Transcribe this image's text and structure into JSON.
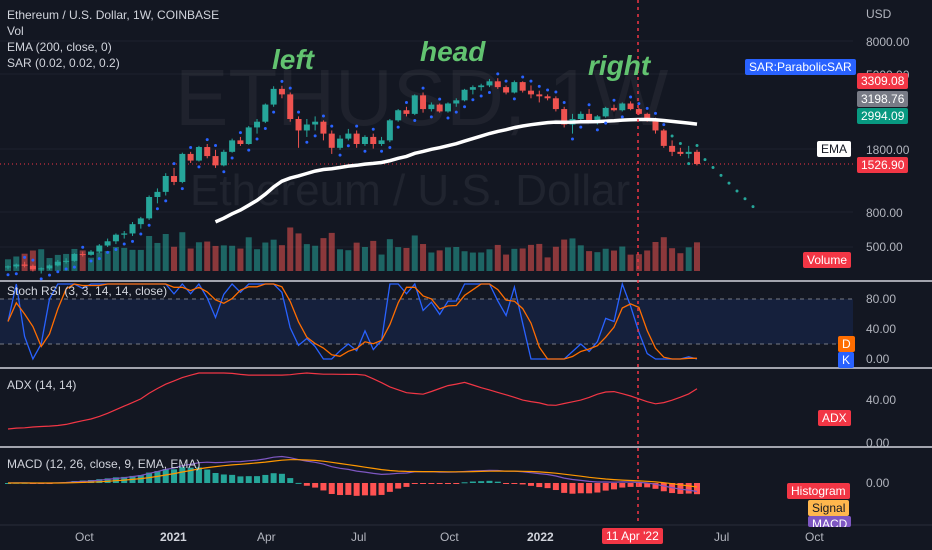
{
  "header": {
    "title": "Ethereum / U.S. Dollar, 1W, COINBASE",
    "indicators": [
      "Vol",
      "EMA (200, close, 0)",
      "SAR (0.02, 0.02, 0.2)"
    ]
  },
  "watermark": {
    "symbol": "ETHUSD, 1W",
    "name": "Ethereum / U.S. Dollar"
  },
  "annotations": {
    "left": "left",
    "head": "head",
    "right": "right"
  },
  "price_axis": {
    "unit": "USD",
    "ticks": [
      "8000.00",
      "5000.00",
      "1800.00",
      "800.00",
      "500.00"
    ],
    "badges": [
      {
        "text": "3309.08",
        "color": "#f23645"
      },
      {
        "text": "3198.76",
        "color": "#787b86"
      },
      {
        "text": "2994.09",
        "color": "#089981"
      },
      {
        "text": "1526.90",
        "color": "#f23645"
      }
    ],
    "sar_label": "SAR:ParabolicSAR",
    "ema_label": "EMA",
    "volume_label": "Volume"
  },
  "stoch": {
    "title": "Stoch RSI (3, 3, 14, 14, close)",
    "ticks": [
      "80.00",
      "40.00",
      "0.00"
    ],
    "d_label": "D",
    "k_label": "K"
  },
  "adx": {
    "title": "ADX (14, 14)",
    "ticks": [
      "40.00",
      "0.00"
    ],
    "label": "ADX"
  },
  "macd": {
    "title": "MACD (12, 26, close, 9, EMA, EMA)",
    "ticks": [
      "0.00"
    ],
    "histogram_label": "Histogram",
    "signal_label": "Signal",
    "macd_label": "MACD"
  },
  "time_axis": {
    "labels": [
      "Oct",
      "2021",
      "Apr",
      "Jul",
      "Oct",
      "2022",
      "Jul",
      "Oct"
    ],
    "cursor_label": "11 Apr '22"
  },
  "colors": {
    "background": "#131722",
    "up": "#26a69a",
    "down": "#ef5350",
    "ema": "#ffffff",
    "sar": "#2962ff",
    "cursor": "#f23645"
  },
  "chart_data": {
    "type": "candlestick",
    "scale": "log",
    "bars": [
      [
        380,
        390,
        370,
        385
      ],
      [
        385,
        400,
        375,
        395
      ],
      [
        395,
        410,
        380,
        388
      ],
      [
        388,
        395,
        360,
        370
      ],
      [
        370,
        380,
        350,
        375
      ],
      [
        375,
        395,
        368,
        390
      ],
      [
        390,
        420,
        385,
        410
      ],
      [
        410,
        430,
        400,
        415
      ],
      [
        415,
        460,
        410,
        455
      ],
      [
        455,
        470,
        440,
        450
      ],
      [
        450,
        480,
        445,
        470
      ],
      [
        470,
        520,
        460,
        510
      ],
      [
        510,
        560,
        500,
        540
      ],
      [
        540,
        600,
        520,
        590
      ],
      [
        590,
        620,
        560,
        600
      ],
      [
        600,
        700,
        580,
        680
      ],
      [
        680,
        750,
        640,
        735
      ],
      [
        735,
        1000,
        720,
        980
      ],
      [
        980,
        1100,
        900,
        1050
      ],
      [
        1050,
        1350,
        1000,
        1300
      ],
      [
        1300,
        1450,
        1150,
        1200
      ],
      [
        1200,
        1780,
        1180,
        1750
      ],
      [
        1750,
        1800,
        1550,
        1600
      ],
      [
        1600,
        1950,
        1580,
        1920
      ],
      [
        1920,
        2000,
        1650,
        1700
      ],
      [
        1700,
        1850,
        1450,
        1500
      ],
      [
        1500,
        1850,
        1480,
        1800
      ],
      [
        1800,
        2150,
        1780,
        2100
      ],
      [
        2100,
        2200,
        1950,
        2000
      ],
      [
        2000,
        2550,
        1980,
        2500
      ],
      [
        2500,
        2800,
        2300,
        2700
      ],
      [
        2700,
        3450,
        2650,
        3400
      ],
      [
        3400,
        4350,
        3300,
        4200
      ],
      [
        4200,
        4380,
        3700,
        3900
      ],
      [
        3900,
        4000,
        2700,
        2800
      ],
      [
        2800,
        2900,
        1900,
        2400
      ],
      [
        2400,
        2800,
        2200,
        2600
      ],
      [
        2600,
        2900,
        2400,
        2700
      ],
      [
        2700,
        2750,
        2100,
        2300
      ],
      [
        2300,
        2400,
        1750,
        1900
      ],
      [
        1900,
        2250,
        1850,
        2150
      ],
      [
        2150,
        2450,
        2100,
        2300
      ],
      [
        2300,
        2400,
        1900,
        2000
      ],
      [
        2000,
        2250,
        1950,
        2200
      ],
      [
        2200,
        2300,
        1880,
        2000
      ],
      [
        2000,
        2200,
        1950,
        2100
      ],
      [
        2100,
        2800,
        2050,
        2750
      ],
      [
        2750,
        3200,
        2700,
        3150
      ],
      [
        3150,
        3300,
        2900,
        3000
      ],
      [
        3000,
        3900,
        2950,
        3850
      ],
      [
        3850,
        4000,
        3050,
        3200
      ],
      [
        3200,
        3500,
        3100,
        3400
      ],
      [
        3400,
        3450,
        3050,
        3100
      ],
      [
        3100,
        3500,
        3050,
        3450
      ],
      [
        3450,
        3700,
        3300,
        3600
      ],
      [
        3600,
        4200,
        3550,
        4150
      ],
      [
        4150,
        4400,
        3900,
        4300
      ],
      [
        4300,
        4500,
        4100,
        4400
      ],
      [
        4400,
        4800,
        4300,
        4650
      ],
      [
        4650,
        4850,
        4200,
        4300
      ],
      [
        4300,
        4400,
        3900,
        4000
      ],
      [
        4000,
        4700,
        3950,
        4600
      ],
      [
        4600,
        4650,
        4000,
        4100
      ],
      [
        4100,
        4400,
        3700,
        3900
      ],
      [
        3900,
        4100,
        3500,
        3800
      ],
      [
        3800,
        3900,
        3600,
        3700
      ],
      [
        3700,
        3800,
        3100,
        3200
      ],
      [
        3200,
        3300,
        2500,
        2600
      ],
      [
        2600,
        3000,
        2300,
        2800
      ],
      [
        2800,
        3100,
        2700,
        3000
      ],
      [
        3000,
        3200,
        2700,
        2750
      ],
      [
        2750,
        2950,
        2600,
        2900
      ],
      [
        2900,
        3300,
        2850,
        3250
      ],
      [
        3250,
        3400,
        3100,
        3150
      ],
      [
        3150,
        3500,
        3100,
        3450
      ],
      [
        3450,
        3550,
        3150,
        3200
      ],
      [
        3200,
        3250,
        2950,
        3000
      ],
      [
        3000,
        3050,
        2700,
        2800
      ],
      [
        2800,
        2850,
        2300,
        2400
      ],
      [
        2400,
        2450,
        1900,
        1950
      ],
      [
        1950,
        2100,
        1700,
        1800
      ],
      [
        1800,
        1900,
        1700,
        1750
      ],
      [
        1750,
        1950,
        1650,
        1800
      ],
      [
        1800,
        1850,
        1500,
        1527
      ]
    ],
    "annotations": [
      "left",
      "head",
      "right"
    ]
  }
}
